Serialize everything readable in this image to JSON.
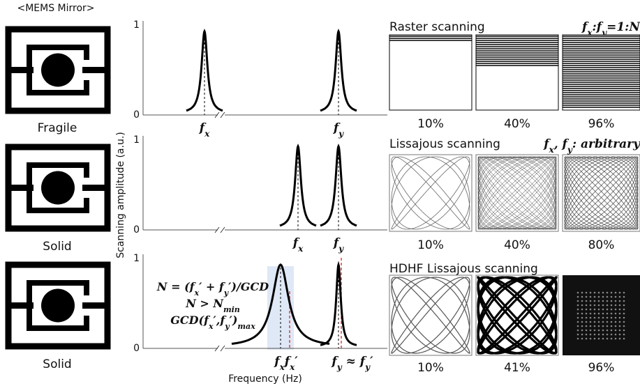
{
  "mirrors": {
    "header": "<MEMS Mirror>",
    "labels": [
      "Fragile",
      "Solid",
      "Solid"
    ]
  },
  "spectra": {
    "y_label": "Scanning amplitude (a.u.)",
    "x_label": "Frequency (Hz)",
    "panels": [
      {
        "y_top": "1",
        "y_bottom": "0",
        "peak_labels": [
          [
            {
              "t": "f"
            },
            {
              "sub": "x"
            }
          ],
          [
            {
              "t": "f"
            },
            {
              "sub": "y"
            }
          ]
        ]
      },
      {
        "y_top": "1",
        "y_bottom": "0",
        "peak_labels": [
          [
            {
              "t": "f"
            },
            {
              "sub": "x"
            }
          ],
          [
            {
              "t": "f"
            },
            {
              "sub": "y"
            }
          ]
        ]
      },
      {
        "y_top": "1",
        "y_bottom": "0",
        "peak_labels": [
          [
            {
              "t": "f"
            },
            {
              "sub": "x"
            },
            {
              "t": "f"
            },
            {
              "sub": "x"
            },
            {
              "t": "′"
            }
          ],
          [
            {
              "t": "f"
            },
            {
              "sub": "y"
            },
            {
              "t": " ≈ f"
            },
            {
              "sub": "y"
            },
            {
              "t": "′"
            }
          ]
        ],
        "equations": [
          [
            {
              "t": "N = (f"
            },
            {
              "sub": "x"
            },
            {
              "t": "′ + f"
            },
            {
              "sub": "y"
            },
            {
              "t": "′)/GCD"
            }
          ],
          [
            {
              "t": "N > N"
            },
            {
              "sub": "min"
            }
          ],
          [
            {
              "t": "GCD(f"
            },
            {
              "sub": "x"
            },
            {
              "t": "′,f"
            },
            {
              "sub": "y"
            },
            {
              "t": "′)"
            },
            {
              "sub": "max"
            }
          ]
        ]
      }
    ]
  },
  "scanning": [
    {
      "title": "Raster scanning",
      "note": [
        {
          "t": "f"
        },
        {
          "sub": "x"
        },
        {
          "t": ":f"
        },
        {
          "sub": "y"
        },
        {
          "t": "=1:N"
        }
      ],
      "percents": [
        "10%",
        "40%",
        "96%"
      ]
    },
    {
      "title": "Lissajous scanning",
      "note": [
        {
          "t": "f"
        },
        {
          "sub": "x"
        },
        {
          "t": ", f"
        },
        {
          "sub": "y"
        },
        {
          "t": ": arbitrary"
        }
      ],
      "percents": [
        "10%",
        "40%",
        "80%"
      ]
    },
    {
      "title": "HDHF Lissajous scanning",
      "percents": [
        "10%",
        "41%",
        "96%"
      ]
    }
  ]
}
